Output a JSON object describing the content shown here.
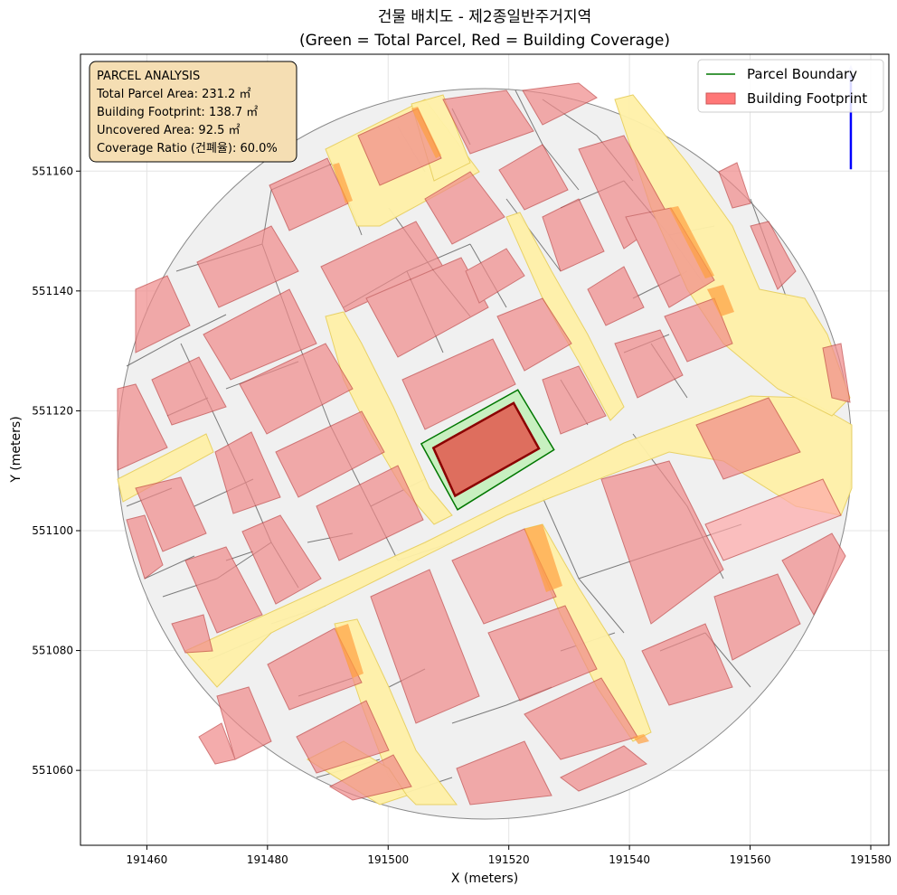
{
  "chart_data": {
    "type": "map",
    "title": "건물 배치도 - 제2종일반주거지역",
    "subtitle": "(Green = Total Parcel, Red = Building Coverage)",
    "xlabel": "X (meters)",
    "ylabel": "Y (meters)",
    "xlim": [
      191449,
      191583
    ],
    "ylim": [
      551047.5,
      551179.5
    ],
    "xticks": [
      191460,
      191480,
      191500,
      191520,
      191540,
      191560,
      191580
    ],
    "yticks": [
      551060,
      551080,
      551100,
      551120,
      551140,
      551160
    ],
    "grid": true,
    "legend_position": "top-right",
    "legend": [
      {
        "label": "Parcel Boundary",
        "color": "#007700",
        "kind": "line"
      },
      {
        "label": "Building Footprint",
        "color": "#ff7777",
        "kind": "patch"
      }
    ],
    "info_box": {
      "position": "top-left",
      "lines": [
        "PARCEL ANALYSIS",
        "Total Parcel Area: 231.2 ㎡",
        "Building Footprint: 138.7 ㎡",
        "Uncovered Area: 92.5 ㎡",
        "Coverage Ratio (건폐율): 60.0%"
      ]
    },
    "target_parcel": [
      [
        191505.5,
        551114.5
      ],
      [
        191521.5,
        551123.5
      ],
      [
        191527.5,
        551113.5
      ],
      [
        191511.5,
        551103.5
      ]
    ],
    "target_building": [
      [
        191507.5,
        551113.8
      ],
      [
        191520.8,
        551121.3
      ],
      [
        191525.0,
        551113.7
      ],
      [
        191511.1,
        551105.8
      ]
    ],
    "north_arrow": {
      "x": 191576.7,
      "y_from": 551160.3,
      "y_to": 551177.5,
      "color": "#0000ff"
    },
    "colors": {
      "parcel_fill": "#c8f0c0",
      "parcel_edge": "#007700",
      "building_fill": "#f08a8a",
      "target_building_fill": "#de6e5e",
      "target_building_edge": "#8b0000",
      "road": "#fff1a8",
      "road_edge": "#e8d060",
      "context_parcel": "#f0f0f0",
      "context_edge": "#666666",
      "info_box_fill": "#f5deb3"
    }
  }
}
